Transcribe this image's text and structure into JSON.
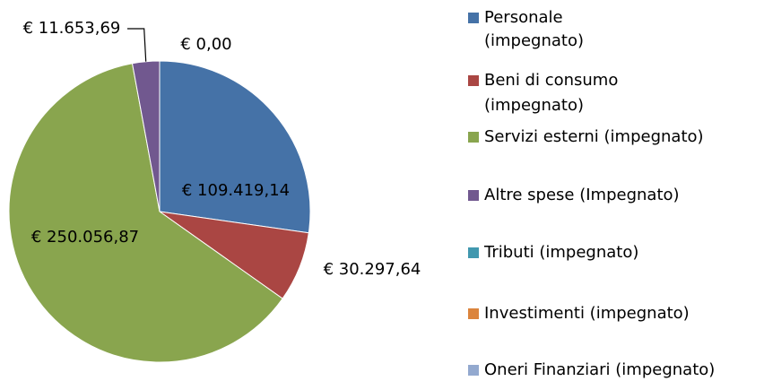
{
  "chart_data": {
    "type": "pie",
    "categories": [
      "Personale (impegnato)",
      "Beni di consumo (impegnato)",
      "Servizi esterni (impegnato)",
      "Altre spese (Impegnato)",
      "Tributi (impegnato)",
      "Investimenti (impegnato)",
      "Oneri Finanziari (impegnato)"
    ],
    "values": [
      109419.14,
      30297.64,
      250056.87,
      11653.69,
      0,
      0,
      0
    ],
    "value_labels": [
      "€ 109.419,14",
      "€ 30.297,64",
      "€ 250.056,87",
      "€ 11.653,69",
      "€ 0,00",
      null,
      null
    ],
    "colors": [
      "#4572a7",
      "#aa4643",
      "#89a54e",
      "#71588f",
      "#4198af",
      "#db843d",
      "#93a9cf"
    ],
    "legend": "right"
  }
}
